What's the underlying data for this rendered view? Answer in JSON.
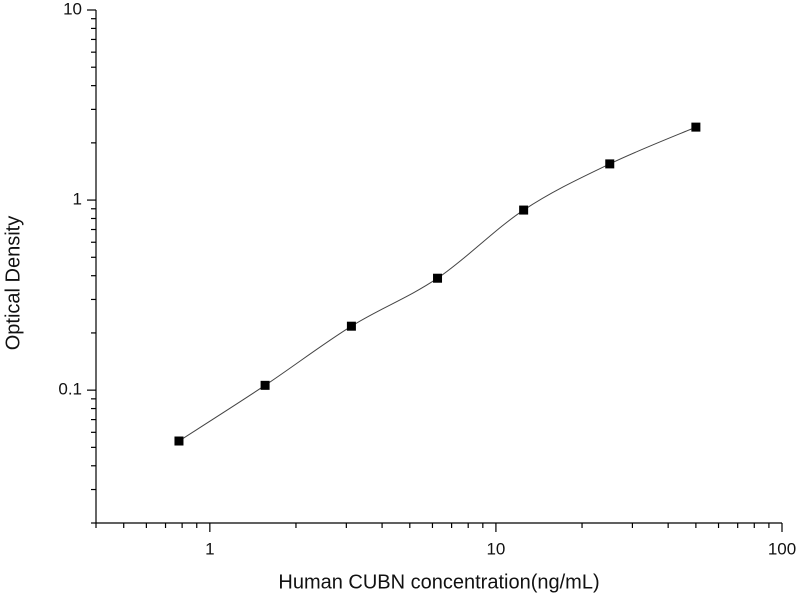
{
  "chart_data": {
    "type": "scatter",
    "x_label": "Human CUBN concentration(ng/mL)",
    "y_label": "Optical Density",
    "series": [
      {
        "color": "#000000",
        "line_color": "#444444",
        "x": [
          0.78,
          1.56,
          3.125,
          6.25,
          12.5,
          25,
          50
        ],
        "values": [
          0.054,
          0.106,
          0.217,
          0.388,
          0.886,
          1.55,
          2.42
        ]
      }
    ],
    "xlim": [
      0.4,
      100
    ],
    "ylim": [
      0.02,
      10
    ],
    "xticks": [
      1,
      10,
      100
    ],
    "yticks": [
      0.1,
      1,
      10
    ],
    "xscale": "log",
    "yscale": "log",
    "minor_ticks": true,
    "smooth_curve": true,
    "grid": false
  }
}
